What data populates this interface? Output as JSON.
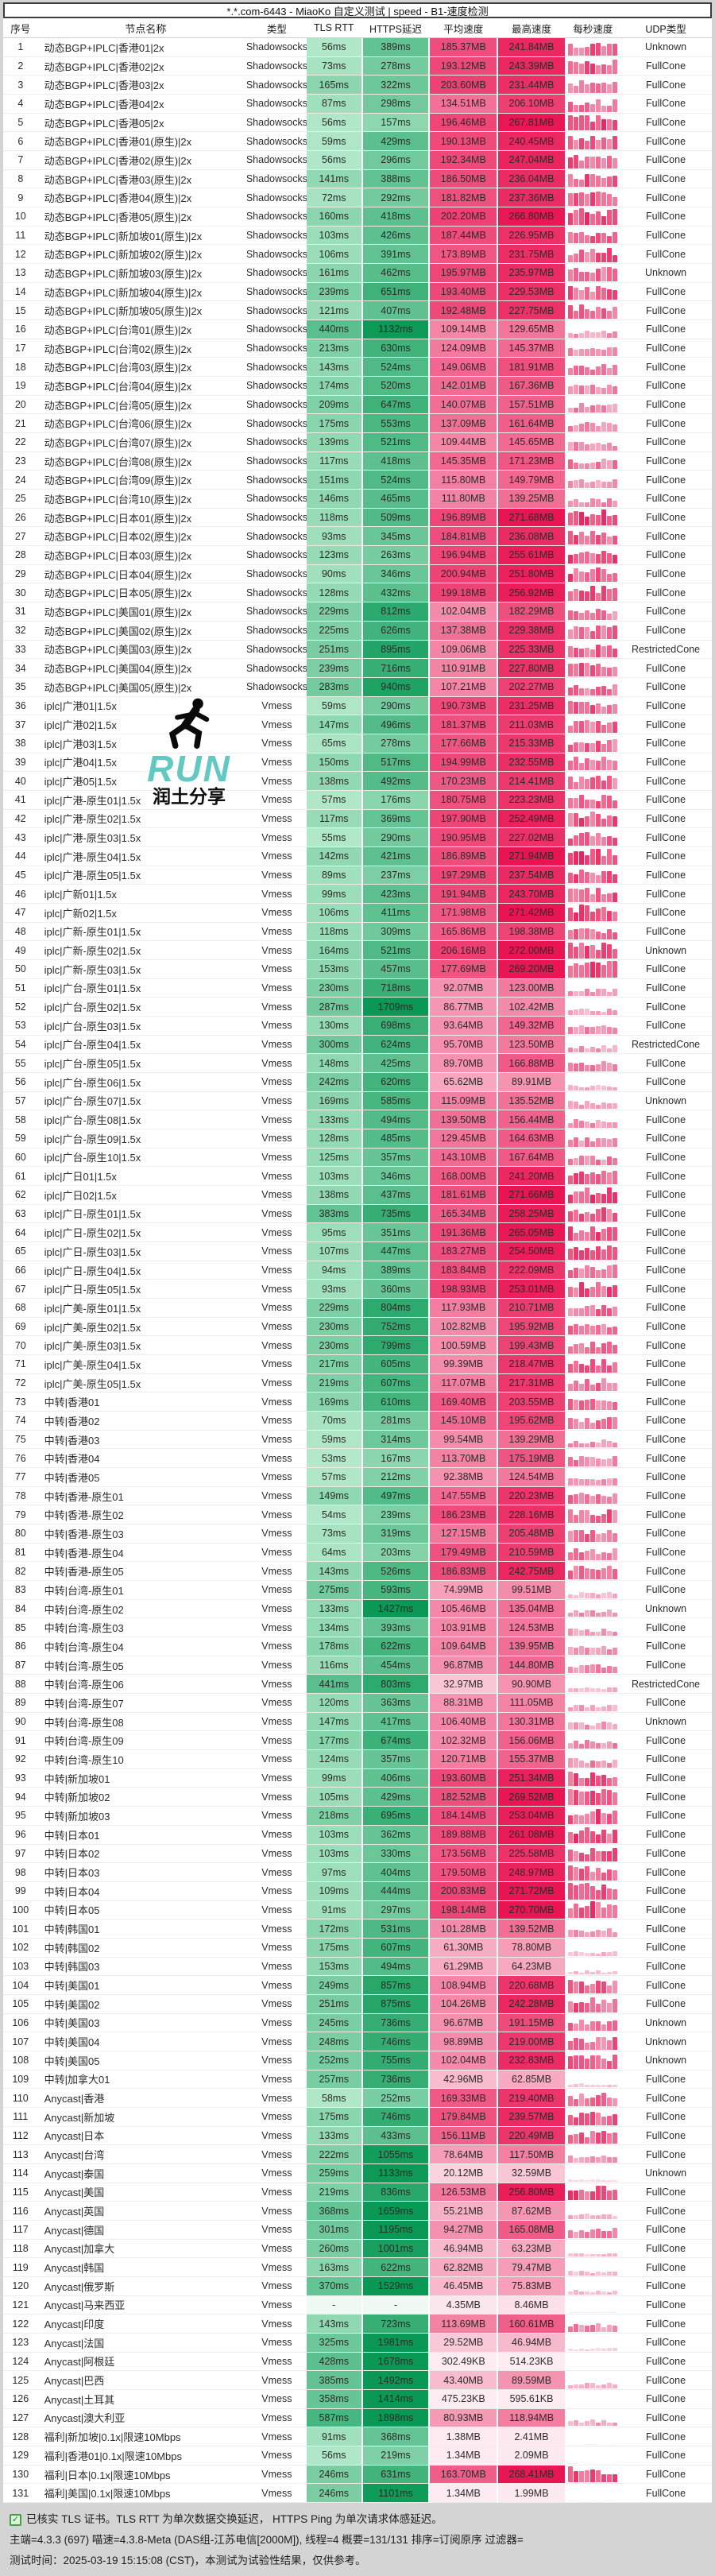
{
  "title": "*.*.com-6443 - MiaoKo 自定义测试 | speed - B1-速度检测",
  "headers": [
    "序号",
    "节点名称",
    "类型",
    "TLS RTT",
    "HTTPS延迟",
    "平均速度",
    "最高速度",
    "每秒速度",
    "UDP类型"
  ],
  "colors": {
    "green_low": "#b8ebcd",
    "green_high": "#0a9955",
    "pink_low": "#fdeef3",
    "pink_high": "#e91452",
    "watermark_teal": "#64c8c2",
    "footer_bg": "#d4d4d4"
  },
  "watermark": {
    "icon": "runner-icon",
    "run": "RUN",
    "share": "润土分享"
  },
  "footer": {
    "check_icon": "checkbox-checked-icon",
    "line1": "已核实 TLS 证书。TLS RTT 为单次数据交换延迟， HTTPS Ping 为单次请求体感延迟。",
    "line2": "主端=4.3.3 (697) 喵速=4.3.8-Meta (DAS组-江苏电信[2000M]), 线程=4 概要=131/131 排序=订阅原序 过滤器=",
    "line3": "测试时间：2025-03-19 15:15:08 (CST)，本测试为试验性结果，仅供参考。"
  },
  "rows": [
    [
      "动态BGP+IPLC|香港01|2x",
      "Shadowsocks",
      "56ms",
      "389ms",
      "185.37MB",
      "241.84MB",
      "Unknown"
    ],
    [
      "动态BGP+IPLC|香港02|2x",
      "Shadowsocks",
      "73ms",
      "278ms",
      "193.12MB",
      "243.39MB",
      "FullCone"
    ],
    [
      "动态BGP+IPLC|香港03|2x",
      "Shadowsocks",
      "165ms",
      "322ms",
      "203.60MB",
      "231.44MB",
      "FullCone"
    ],
    [
      "动态BGP+IPLC|香港04|2x",
      "Shadowsocks",
      "87ms",
      "298ms",
      "134.51MB",
      "206.10MB",
      "FullCone"
    ],
    [
      "动态BGP+IPLC|香港05|2x",
      "Shadowsocks",
      "56ms",
      "157ms",
      "196.46MB",
      "267.81MB",
      "FullCone"
    ],
    [
      "动态BGP+IPLC|香港01(原生)|2x",
      "Shadowsocks",
      "59ms",
      "429ms",
      "190.13MB",
      "240.45MB",
      "FullCone"
    ],
    [
      "动态BGP+IPLC|香港02(原生)|2x",
      "Shadowsocks",
      "56ms",
      "296ms",
      "192.34MB",
      "247.04MB",
      "FullCone"
    ],
    [
      "动态BGP+IPLC|香港03(原生)|2x",
      "Shadowsocks",
      "141ms",
      "388ms",
      "186.50MB",
      "236.04MB",
      "FullCone"
    ],
    [
      "动态BGP+IPLC|香港04(原生)|2x",
      "Shadowsocks",
      "72ms",
      "292ms",
      "181.82MB",
      "237.36MB",
      "FullCone"
    ],
    [
      "动态BGP+IPLC|香港05(原生)|2x",
      "Shadowsocks",
      "160ms",
      "418ms",
      "202.20MB",
      "266.80MB",
      "FullCone"
    ],
    [
      "动态BGP+IPLC|新加坡01(原生)|2x",
      "Shadowsocks",
      "103ms",
      "426ms",
      "187.44MB",
      "226.95MB",
      "FullCone"
    ],
    [
      "动态BGP+IPLC|新加坡02(原生)|2x",
      "Shadowsocks",
      "106ms",
      "391ms",
      "173.89MB",
      "231.75MB",
      "FullCone"
    ],
    [
      "动态BGP+IPLC|新加坡03(原生)|2x",
      "Shadowsocks",
      "161ms",
      "462ms",
      "195.97MB",
      "235.97MB",
      "Unknown"
    ],
    [
      "动态BGP+IPLC|新加坡04(原生)|2x",
      "Shadowsocks",
      "239ms",
      "651ms",
      "193.40MB",
      "229.53MB",
      "FullCone"
    ],
    [
      "动态BGP+IPLC|新加坡05(原生)|2x",
      "Shadowsocks",
      "121ms",
      "407ms",
      "192.48MB",
      "227.75MB",
      "FullCone"
    ],
    [
      "动态BGP+IPLC|台湾01(原生)|2x",
      "Shadowsocks",
      "440ms",
      "1132ms",
      "109.14MB",
      "129.65MB",
      "FullCone"
    ],
    [
      "动态BGP+IPLC|台湾02(原生)|2x",
      "Shadowsocks",
      "213ms",
      "630ms",
      "124.09MB",
      "145.37MB",
      "FullCone"
    ],
    [
      "动态BGP+IPLC|台湾03(原生)|2x",
      "Shadowsocks",
      "143ms",
      "524ms",
      "149.06MB",
      "181.91MB",
      "FullCone"
    ],
    [
      "动态BGP+IPLC|台湾04(原生)|2x",
      "Shadowsocks",
      "174ms",
      "520ms",
      "142.01MB",
      "167.36MB",
      "FullCone"
    ],
    [
      "动态BGP+IPLC|台湾05(原生)|2x",
      "Shadowsocks",
      "209ms",
      "647ms",
      "140.07MB",
      "157.51MB",
      "FullCone"
    ],
    [
      "动态BGP+IPLC|台湾06(原生)|2x",
      "Shadowsocks",
      "175ms",
      "553ms",
      "137.09MB",
      "161.64MB",
      "FullCone"
    ],
    [
      "动态BGP+IPLC|台湾07(原生)|2x",
      "Shadowsocks",
      "139ms",
      "521ms",
      "109.44MB",
      "145.65MB",
      "FullCone"
    ],
    [
      "动态BGP+IPLC|台湾08(原生)|2x",
      "Shadowsocks",
      "117ms",
      "418ms",
      "145.35MB",
      "171.23MB",
      "FullCone"
    ],
    [
      "动态BGP+IPLC|台湾09(原生)|2x",
      "Shadowsocks",
      "151ms",
      "524ms",
      "115.80MB",
      "149.79MB",
      "FullCone"
    ],
    [
      "动态BGP+IPLC|台湾10(原生)|2x",
      "Shadowsocks",
      "146ms",
      "465ms",
      "111.80MB",
      "139.25MB",
      "FullCone"
    ],
    [
      "动态BGP+IPLC|日本01(原生)|2x",
      "Shadowsocks",
      "118ms",
      "509ms",
      "196.89MB",
      "271.68MB",
      "FullCone"
    ],
    [
      "动态BGP+IPLC|日本02(原生)|2x",
      "Shadowsocks",
      "93ms",
      "345ms",
      "184.81MB",
      "236.08MB",
      "FullCone"
    ],
    [
      "动态BGP+IPLC|日本03(原生)|2x",
      "Shadowsocks",
      "123ms",
      "263ms",
      "196.94MB",
      "255.61MB",
      "FullCone"
    ],
    [
      "动态BGP+IPLC|日本04(原生)|2x",
      "Shadowsocks",
      "90ms",
      "346ms",
      "200.94MB",
      "251.80MB",
      "FullCone"
    ],
    [
      "动态BGP+IPLC|日本05(原生)|2x",
      "Shadowsocks",
      "128ms",
      "432ms",
      "199.18MB",
      "256.92MB",
      "FullCone"
    ],
    [
      "动态BGP+IPLC|美国01(原生)|2x",
      "Shadowsocks",
      "229ms",
      "812ms",
      "102.04MB",
      "182.29MB",
      "FullCone"
    ],
    [
      "动态BGP+IPLC|美国02(原生)|2x",
      "Shadowsocks",
      "225ms",
      "626ms",
      "137.38MB",
      "229.38MB",
      "FullCone"
    ],
    [
      "动态BGP+IPLC|美国03(原生)|2x",
      "Shadowsocks",
      "251ms",
      "895ms",
      "109.06MB",
      "225.33MB",
      "RestrictedCone"
    ],
    [
      "动态BGP+IPLC|美国04(原生)|2x",
      "Shadowsocks",
      "239ms",
      "716ms",
      "110.91MB",
      "227.80MB",
      "FullCone"
    ],
    [
      "动态BGP+IPLC|美国05(原生)|2x",
      "Shadowsocks",
      "283ms",
      "940ms",
      "107.21MB",
      "202.27MB",
      "FullCone"
    ],
    [
      "iplc|广港01|1.5x",
      "Vmess",
      "59ms",
      "290ms",
      "190.73MB",
      "231.25MB",
      "FullCone"
    ],
    [
      "iplc|广港02|1.5x",
      "Vmess",
      "147ms",
      "496ms",
      "181.37MB",
      "211.03MB",
      "FullCone"
    ],
    [
      "iplc|广港03|1.5x",
      "Vmess",
      "65ms",
      "278ms",
      "177.66MB",
      "215.33MB",
      "FullCone"
    ],
    [
      "iplc|广港04|1.5x",
      "Vmess",
      "150ms",
      "517ms",
      "194.99MB",
      "232.55MB",
      "FullCone"
    ],
    [
      "iplc|广港05|1.5x",
      "Vmess",
      "138ms",
      "492ms",
      "170.23MB",
      "214.41MB",
      "FullCone"
    ],
    [
      "iplc|广港-原生01|1.5x",
      "Vmess",
      "57ms",
      "176ms",
      "180.75MB",
      "223.23MB",
      "FullCone"
    ],
    [
      "iplc|广港-原生02|1.5x",
      "Vmess",
      "117ms",
      "369ms",
      "197.90MB",
      "252.49MB",
      "FullCone"
    ],
    [
      "iplc|广港-原生03|1.5x",
      "Vmess",
      "55ms",
      "290ms",
      "190.95MB",
      "227.02MB",
      "FullCone"
    ],
    [
      "iplc|广港-原生04|1.5x",
      "Vmess",
      "142ms",
      "421ms",
      "186.89MB",
      "271.94MB",
      "FullCone"
    ],
    [
      "iplc|广港-原生05|1.5x",
      "Vmess",
      "89ms",
      "237ms",
      "197.29MB",
      "237.54MB",
      "FullCone"
    ],
    [
      "iplc|广新01|1.5x",
      "Vmess",
      "99ms",
      "423ms",
      "191.94MB",
      "243.70MB",
      "FullCone"
    ],
    [
      "iplc|广新02|1.5x",
      "Vmess",
      "106ms",
      "411ms",
      "171.98MB",
      "271.42MB",
      "FullCone"
    ],
    [
      "iplc|广新-原生01|1.5x",
      "Vmess",
      "118ms",
      "309ms",
      "165.86MB",
      "198.38MB",
      "FullCone"
    ],
    [
      "iplc|广新-原生02|1.5x",
      "Vmess",
      "164ms",
      "521ms",
      "206.16MB",
      "272.00MB",
      "Unknown"
    ],
    [
      "iplc|广新-原生03|1.5x",
      "Vmess",
      "153ms",
      "457ms",
      "177.69MB",
      "269.20MB",
      "FullCone"
    ],
    [
      "iplc|广台-原生01|1.5x",
      "Vmess",
      "230ms",
      "718ms",
      "92.07MB",
      "123.00MB",
      "FullCone"
    ],
    [
      "iplc|广台-原生02|1.5x",
      "Vmess",
      "287ms",
      "1709ms",
      "86.77MB",
      "102.42MB",
      "FullCone"
    ],
    [
      "iplc|广台-原生03|1.5x",
      "Vmess",
      "130ms",
      "698ms",
      "93.64MB",
      "149.32MB",
      "FullCone"
    ],
    [
      "iplc|广台-原生04|1.5x",
      "Vmess",
      "300ms",
      "624ms",
      "95.70MB",
      "123.50MB",
      "RestrictedCone"
    ],
    [
      "iplc|广台-原生05|1.5x",
      "Vmess",
      "148ms",
      "425ms",
      "89.70MB",
      "166.88MB",
      "FullCone"
    ],
    [
      "iplc|广台-原生06|1.5x",
      "Vmess",
      "242ms",
      "620ms",
      "65.62MB",
      "89.91MB",
      "FullCone"
    ],
    [
      "iplc|广台-原生07|1.5x",
      "Vmess",
      "169ms",
      "585ms",
      "115.09MB",
      "135.52MB",
      "Unknown"
    ],
    [
      "iplc|广台-原生08|1.5x",
      "Vmess",
      "133ms",
      "494ms",
      "139.50MB",
      "156.44MB",
      "FullCone"
    ],
    [
      "iplc|广台-原生09|1.5x",
      "Vmess",
      "128ms",
      "485ms",
      "129.45MB",
      "164.63MB",
      "FullCone"
    ],
    [
      "iplc|广台-原生10|1.5x",
      "Vmess",
      "125ms",
      "357ms",
      "143.10MB",
      "167.64MB",
      "FullCone"
    ],
    [
      "iplc|广日01|1.5x",
      "Vmess",
      "103ms",
      "346ms",
      "168.00MB",
      "241.20MB",
      "FullCone"
    ],
    [
      "iplc|广日02|1.5x",
      "Vmess",
      "138ms",
      "437ms",
      "181.61MB",
      "271.66MB",
      "FullCone"
    ],
    [
      "iplc|广日-原生01|1.5x",
      "Vmess",
      "383ms",
      "735ms",
      "165.34MB",
      "258.25MB",
      "FullCone"
    ],
    [
      "iplc|广日-原生02|1.5x",
      "Vmess",
      "95ms",
      "351ms",
      "191.36MB",
      "265.05MB",
      "FullCone"
    ],
    [
      "iplc|广日-原生03|1.5x",
      "Vmess",
      "107ms",
      "447ms",
      "183.27MB",
      "254.50MB",
      "FullCone"
    ],
    [
      "iplc|广日-原生04|1.5x",
      "Vmess",
      "94ms",
      "389ms",
      "183.84MB",
      "222.09MB",
      "FullCone"
    ],
    [
      "iplc|广日-原生05|1.5x",
      "Vmess",
      "93ms",
      "360ms",
      "198.93MB",
      "253.01MB",
      "FullCone"
    ],
    [
      "iplc|广美-原生01|1.5x",
      "Vmess",
      "229ms",
      "804ms",
      "117.93MB",
      "210.71MB",
      "FullCone"
    ],
    [
      "iplc|广美-原生02|1.5x",
      "Vmess",
      "230ms",
      "752ms",
      "102.82MB",
      "195.92MB",
      "FullCone"
    ],
    [
      "iplc|广美-原生03|1.5x",
      "Vmess",
      "230ms",
      "799ms",
      "100.59MB",
      "199.43MB",
      "FullCone"
    ],
    [
      "iplc|广美-原生04|1.5x",
      "Vmess",
      "217ms",
      "605ms",
      "99.39MB",
      "218.47MB",
      "FullCone"
    ],
    [
      "iplc|广美-原生05|1.5x",
      "Vmess",
      "219ms",
      "607ms",
      "117.07MB",
      "217.31MB",
      "FullCone"
    ],
    [
      "中转|香港01",
      "Vmess",
      "169ms",
      "610ms",
      "169.40MB",
      "203.55MB",
      "FullCone"
    ],
    [
      "中转|香港02",
      "Vmess",
      "70ms",
      "281ms",
      "145.10MB",
      "195.62MB",
      "FullCone"
    ],
    [
      "中转|香港03",
      "Vmess",
      "59ms",
      "314ms",
      "99.54MB",
      "139.29MB",
      "FullCone"
    ],
    [
      "中转|香港04",
      "Vmess",
      "53ms",
      "167ms",
      "113.70MB",
      "175.19MB",
      "FullCone"
    ],
    [
      "中转|香港05",
      "Vmess",
      "57ms",
      "212ms",
      "92.38MB",
      "124.54MB",
      "FullCone"
    ],
    [
      "中转|香港-原生01",
      "Vmess",
      "149ms",
      "497ms",
      "147.55MB",
      "220.23MB",
      "FullCone"
    ],
    [
      "中转|香港-原生02",
      "Vmess",
      "54ms",
      "239ms",
      "186.23MB",
      "228.16MB",
      "FullCone"
    ],
    [
      "中转|香港-原生03",
      "Vmess",
      "73ms",
      "319ms",
      "127.15MB",
      "205.48MB",
      "FullCone"
    ],
    [
      "中转|香港-原生04",
      "Vmess",
      "64ms",
      "203ms",
      "179.49MB",
      "210.59MB",
      "FullCone"
    ],
    [
      "中转|香港-原生05",
      "Vmess",
      "143ms",
      "526ms",
      "186.83MB",
      "242.75MB",
      "FullCone"
    ],
    [
      "中转|台湾-原生01",
      "Vmess",
      "275ms",
      "593ms",
      "74.99MB",
      "99.51MB",
      "FullCone"
    ],
    [
      "中转|台湾-原生02",
      "Vmess",
      "133ms",
      "1427ms",
      "105.46MB",
      "135.04MB",
      "Unknown"
    ],
    [
      "中转|台湾-原生03",
      "Vmess",
      "134ms",
      "393ms",
      "103.91MB",
      "124.53MB",
      "FullCone"
    ],
    [
      "中转|台湾-原生04",
      "Vmess",
      "178ms",
      "622ms",
      "109.64MB",
      "139.95MB",
      "FullCone"
    ],
    [
      "中转|台湾-原生05",
      "Vmess",
      "116ms",
      "454ms",
      "96.87MB",
      "144.80MB",
      "FullCone"
    ],
    [
      "中转|台湾-原生06",
      "Vmess",
      "441ms",
      "803ms",
      "32.97MB",
      "90.90MB",
      "RestrictedCone"
    ],
    [
      "中转|台湾-原生07",
      "Vmess",
      "120ms",
      "363ms",
      "88.31MB",
      "111.05MB",
      "FullCone"
    ],
    [
      "中转|台湾-原生08",
      "Vmess",
      "147ms",
      "417ms",
      "106.40MB",
      "130.31MB",
      "Unknown"
    ],
    [
      "中转|台湾-原生09",
      "Vmess",
      "177ms",
      "674ms",
      "102.32MB",
      "156.06MB",
      "FullCone"
    ],
    [
      "中转|台湾-原生10",
      "Vmess",
      "124ms",
      "357ms",
      "120.71MB",
      "155.37MB",
      "FullCone"
    ],
    [
      "中转|新加坡01",
      "Vmess",
      "99ms",
      "406ms",
      "193.60MB",
      "251.34MB",
      "FullCone"
    ],
    [
      "中转|新加坡02",
      "Vmess",
      "105ms",
      "429ms",
      "182.52MB",
      "269.52MB",
      "FullCone"
    ],
    [
      "中转|新加坡03",
      "Vmess",
      "218ms",
      "695ms",
      "184.14MB",
      "253.04MB",
      "FullCone"
    ],
    [
      "中转|日本01",
      "Vmess",
      "103ms",
      "362ms",
      "189.88MB",
      "261.08MB",
      "FullCone"
    ],
    [
      "中转|日本02",
      "Vmess",
      "103ms",
      "330ms",
      "173.56MB",
      "225.58MB",
      "FullCone"
    ],
    [
      "中转|日本03",
      "Vmess",
      "97ms",
      "404ms",
      "179.50MB",
      "248.97MB",
      "FullCone"
    ],
    [
      "中转|日本04",
      "Vmess",
      "109ms",
      "444ms",
      "200.83MB",
      "271.72MB",
      "FullCone"
    ],
    [
      "中转|日本05",
      "Vmess",
      "91ms",
      "297ms",
      "198.14MB",
      "270.70MB",
      "FullCone"
    ],
    [
      "中转|韩国01",
      "Vmess",
      "172ms",
      "531ms",
      "101.28MB",
      "139.52MB",
      "FullCone"
    ],
    [
      "中转|韩国02",
      "Vmess",
      "175ms",
      "607ms",
      "61.30MB",
      "78.80MB",
      "FullCone"
    ],
    [
      "中转|韩国03",
      "Vmess",
      "153ms",
      "494ms",
      "61.29MB",
      "64.23MB",
      "FullCone"
    ],
    [
      "中转|美国01",
      "Vmess",
      "249ms",
      "857ms",
      "108.94MB",
      "220.68MB",
      "FullCone"
    ],
    [
      "中转|美国02",
      "Vmess",
      "251ms",
      "875ms",
      "104.26MB",
      "242.28MB",
      "FullCone"
    ],
    [
      "中转|美国03",
      "Vmess",
      "245ms",
      "736ms",
      "96.67MB",
      "191.15MB",
      "Unknown"
    ],
    [
      "中转|美国04",
      "Vmess",
      "248ms",
      "746ms",
      "98.89MB",
      "219.00MB",
      "Unknown"
    ],
    [
      "中转|美国05",
      "Vmess",
      "252ms",
      "755ms",
      "102.04MB",
      "232.83MB",
      "Unknown"
    ],
    [
      "中转|加拿大01",
      "Vmess",
      "257ms",
      "736ms",
      "42.96MB",
      "62.85MB",
      "FullCone"
    ],
    [
      "Anycast|香港",
      "Vmess",
      "58ms",
      "252ms",
      "169.33MB",
      "219.40MB",
      "FullCone"
    ],
    [
      "Anycast|新加坡",
      "Vmess",
      "175ms",
      "746ms",
      "179.84MB",
      "239.57MB",
      "FullCone"
    ],
    [
      "Anycast|日本",
      "Vmess",
      "133ms",
      "433ms",
      "156.11MB",
      "220.49MB",
      "FullCone"
    ],
    [
      "Anycast|台湾",
      "Vmess",
      "222ms",
      "1055ms",
      "78.64MB",
      "117.50MB",
      "FullCone"
    ],
    [
      "Anycast|泰国",
      "Vmess",
      "259ms",
      "1133ms",
      "20.12MB",
      "32.59MB",
      "Unknown"
    ],
    [
      "Anycast|美国",
      "Vmess",
      "219ms",
      "836ms",
      "126.53MB",
      "256.80MB",
      "FullCone"
    ],
    [
      "Anycast|英国",
      "Vmess",
      "368ms",
      "1659ms",
      "55.21MB",
      "87.62MB",
      "FullCone"
    ],
    [
      "Anycast|德国",
      "Vmess",
      "301ms",
      "1195ms",
      "94.27MB",
      "165.08MB",
      "FullCone"
    ],
    [
      "Anycast|加拿大",
      "Vmess",
      "260ms",
      "1001ms",
      "46.94MB",
      "63.23MB",
      "FullCone"
    ],
    [
      "Anycast|韩国",
      "Vmess",
      "163ms",
      "622ms",
      "62.82MB",
      "79.47MB",
      "FullCone"
    ],
    [
      "Anycast|俄罗斯",
      "Vmess",
      "370ms",
      "1529ms",
      "46.45MB",
      "75.83MB",
      "FullCone"
    ],
    [
      "Anycast|马来西亚",
      "Vmess",
      "-",
      "-",
      "4.35MB",
      "8.46MB",
      "FullCone"
    ],
    [
      "Anycast|印度",
      "Vmess",
      "143ms",
      "723ms",
      "113.69MB",
      "160.61MB",
      "FullCone"
    ],
    [
      "Anycast|法国",
      "Vmess",
      "325ms",
      "1981ms",
      "29.52MB",
      "46.94MB",
      "FullCone"
    ],
    [
      "Anycast|阿根廷",
      "Vmess",
      "428ms",
      "1678ms",
      "302.49KB",
      "514.23KB",
      "FullCone"
    ],
    [
      "Anycast|巴西",
      "Vmess",
      "385ms",
      "1492ms",
      "43.40MB",
      "89.59MB",
      "FullCone"
    ],
    [
      "Anycast|土耳其",
      "Vmess",
      "358ms",
      "1414ms",
      "475.23KB",
      "595.61KB",
      "FullCone"
    ],
    [
      "Anycast|澳大利亚",
      "Vmess",
      "587ms",
      "1898ms",
      "80.93MB",
      "118.94MB",
      "FullCone"
    ],
    [
      "福利|新加坡|0.1x|限速10Mbps",
      "Vmess",
      "91ms",
      "368ms",
      "1.38MB",
      "2.41MB",
      "FullCone"
    ],
    [
      "福利|香港01|0.1x|限速10Mbps",
      "Vmess",
      "56ms",
      "219ms",
      "1.34MB",
      "2.09MB",
      "FullCone"
    ],
    [
      "福利|日本|0.1x|限速10Mbps",
      "Vmess",
      "246ms",
      "631ms",
      "163.70MB",
      "268.41MB",
      "FullCone"
    ],
    [
      "福利|美国|0.1x|限速10Mbps",
      "Vmess",
      "246ms",
      "1101ms",
      "1.34MB",
      "1.99MB",
      "FullCone"
    ]
  ]
}
